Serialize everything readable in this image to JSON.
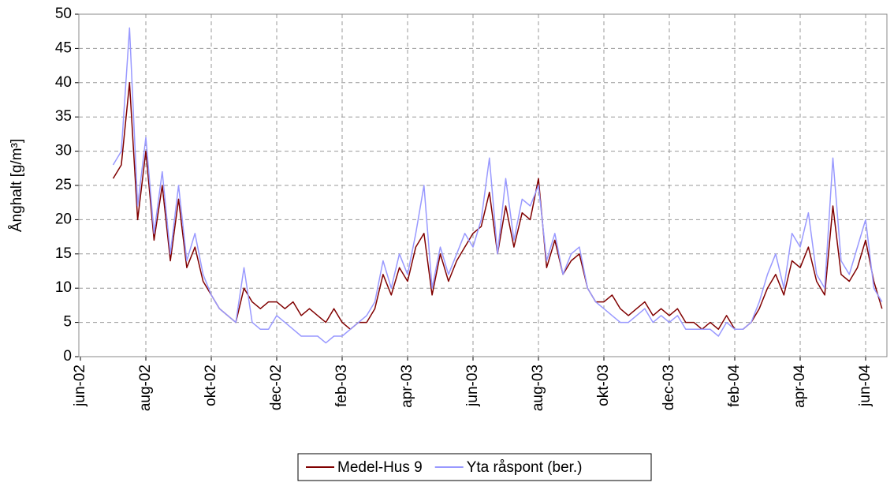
{
  "chart_data": {
    "type": "line",
    "y_label": "Ånghalt [g/m³]",
    "categories": [
      "jun-02",
      null,
      null,
      null,
      null,
      null,
      null,
      null,
      "aug-02",
      null,
      null,
      null,
      null,
      null,
      null,
      null,
      "okt-02",
      null,
      null,
      null,
      null,
      null,
      null,
      null,
      "dec-02",
      null,
      null,
      null,
      null,
      null,
      null,
      null,
      "feb-03",
      null,
      null,
      null,
      null,
      null,
      null,
      null,
      "apr-03",
      null,
      null,
      null,
      null,
      null,
      null,
      null,
      "jun-03",
      null,
      null,
      null,
      null,
      null,
      null,
      null,
      "aug-03",
      null,
      null,
      null,
      null,
      null,
      null,
      null,
      "okt-03",
      null,
      null,
      null,
      null,
      null,
      null,
      null,
      "dec-03",
      null,
      null,
      null,
      null,
      null,
      null,
      null,
      "feb-04",
      null,
      null,
      null,
      null,
      null,
      null,
      null,
      "apr-04",
      null,
      null,
      null,
      null,
      null,
      null,
      null,
      "jun-04",
      null,
      null
    ],
    "series": [
      {
        "name": "Medel-Hus 9",
        "color": "#800000",
        "values": [
          null,
          null,
          null,
          null,
          26,
          28,
          40,
          20,
          30,
          17,
          25,
          14,
          23,
          13,
          16,
          11,
          9,
          7,
          6,
          5,
          10,
          8,
          7,
          8,
          8,
          7,
          8,
          6,
          7,
          6,
          5,
          7,
          5,
          4,
          5,
          5,
          7,
          12,
          9,
          13,
          11,
          16,
          18,
          9,
          15,
          11,
          14,
          16,
          18,
          19,
          24,
          15,
          22,
          16,
          21,
          20,
          26,
          13,
          17,
          12,
          14,
          15,
          10,
          8,
          8,
          9,
          7,
          6,
          7,
          8,
          6,
          7,
          6,
          7,
          5,
          5,
          4,
          5,
          4,
          6,
          4,
          4,
          5,
          7,
          10,
          12,
          9,
          14,
          13,
          16,
          11,
          9,
          22,
          12,
          11,
          13,
          17,
          11,
          7
        ]
      },
      {
        "name": "Yta råspont (ber.)",
        "color": "#9999ff",
        "values": [
          null,
          null,
          null,
          null,
          28,
          30,
          48,
          22,
          32,
          18,
          27,
          15,
          25,
          14,
          18,
          12,
          9,
          7,
          6,
          5,
          13,
          5,
          4,
          4,
          6,
          5,
          4,
          3,
          3,
          3,
          2,
          3,
          3,
          4,
          5,
          6,
          8,
          14,
          10,
          15,
          12,
          18,
          25,
          10,
          16,
          12,
          15,
          18,
          16,
          20,
          29,
          15,
          26,
          17,
          23,
          22,
          25,
          14,
          18,
          12,
          15,
          16,
          10,
          8,
          7,
          6,
          5,
          5,
          6,
          7,
          5,
          6,
          5,
          6,
          4,
          4,
          4,
          4,
          3,
          5,
          4,
          4,
          5,
          8,
          12,
          15,
          10,
          18,
          16,
          21,
          12,
          10,
          29,
          14,
          12,
          16,
          20,
          10,
          8
        ]
      }
    ],
    "ylim": [
      0,
      50
    ],
    "yticks": [
      0,
      5,
      10,
      15,
      20,
      25,
      30,
      35,
      40,
      45,
      50
    ],
    "grid": true
  }
}
